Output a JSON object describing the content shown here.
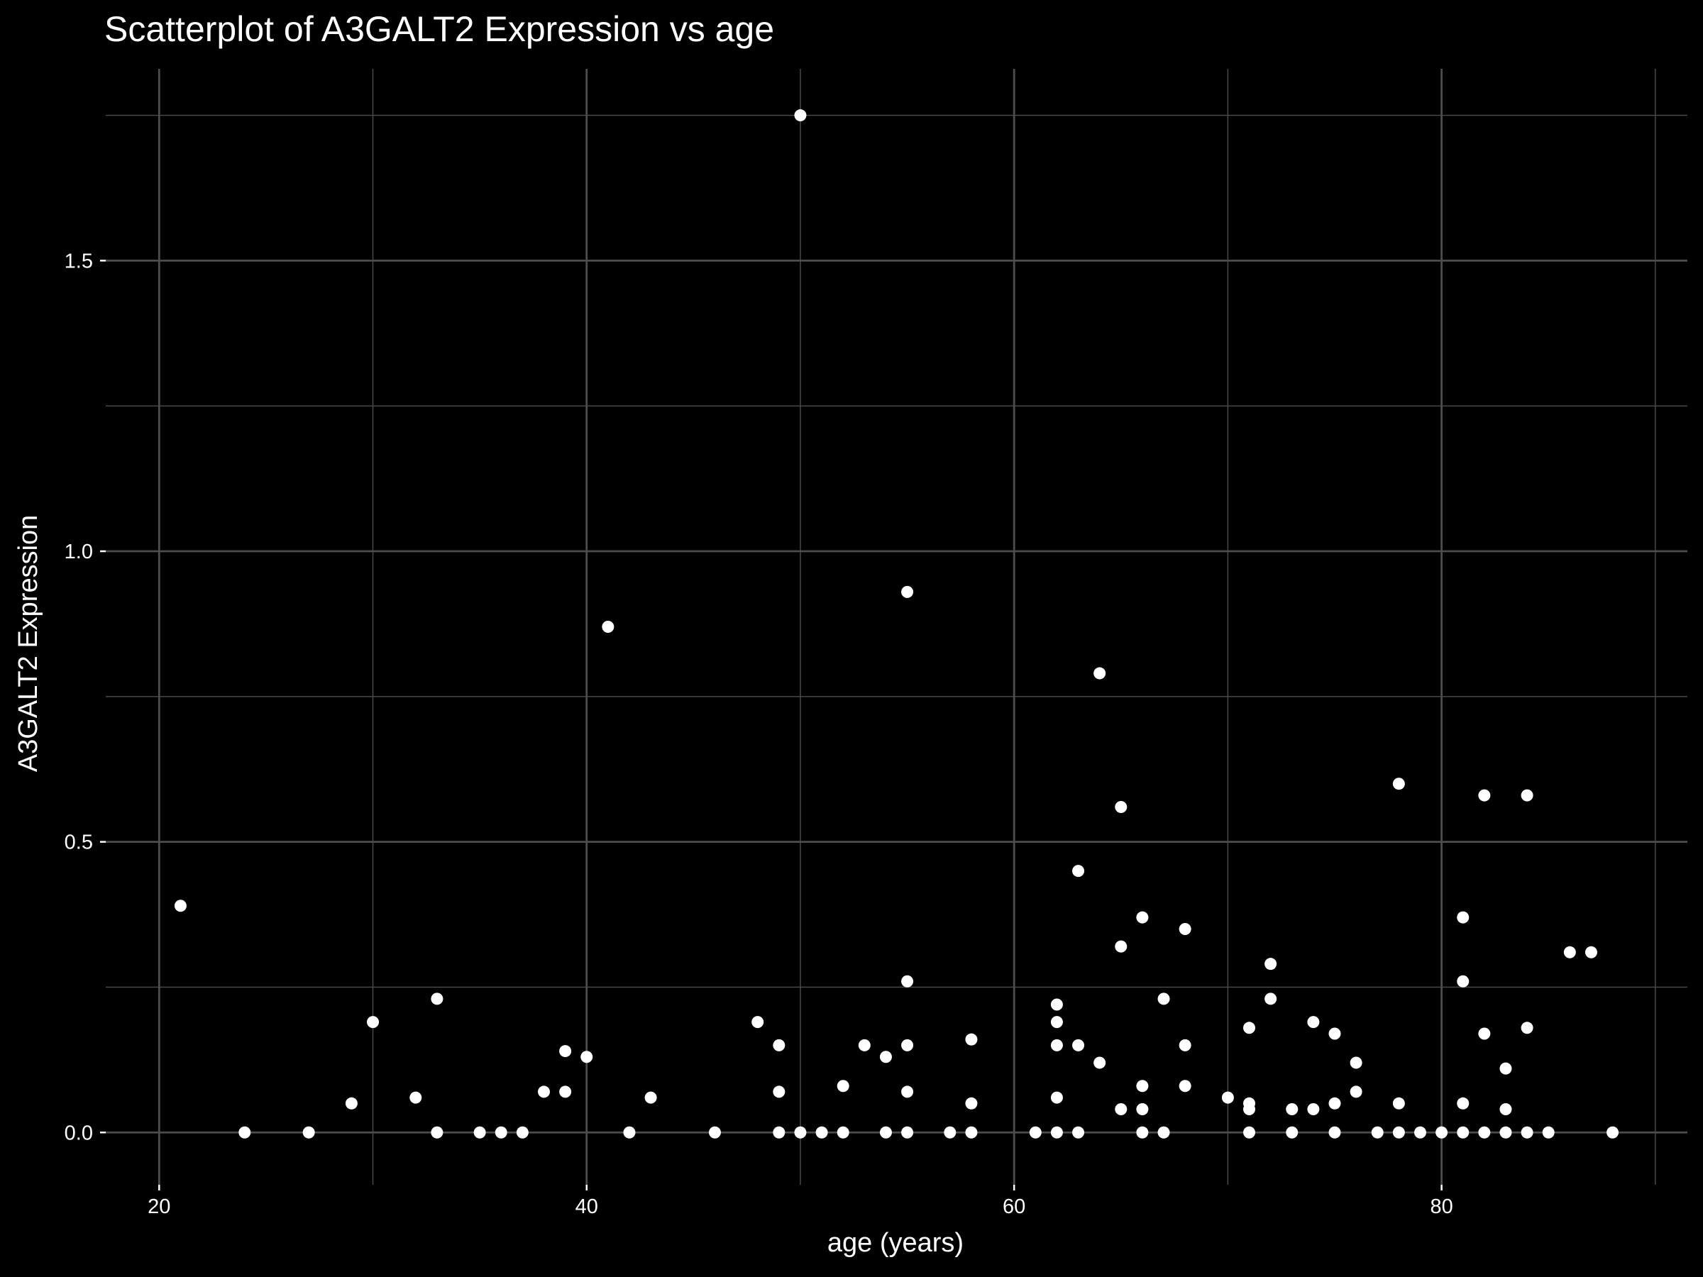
{
  "chart_data": {
    "type": "scatter",
    "title": "Scatterplot of A3GALT2 Expression vs age",
    "xlabel": "age (years)",
    "ylabel": "A3GALT2 Expression",
    "xlim": [
      17.5,
      91.5
    ],
    "ylim": [
      -0.09,
      1.83
    ],
    "x_ticks": [
      20,
      40,
      60,
      80
    ],
    "y_ticks": [
      0.0,
      0.5,
      1.0,
      1.5
    ],
    "x_tick_labels": [
      "20",
      "40",
      "60",
      "80"
    ],
    "y_tick_labels": [
      "0.0",
      "0.5",
      "1.0",
      "1.5"
    ],
    "grid": true,
    "legend": "none",
    "colors": {
      "background": "#000000",
      "points": "#ffffff",
      "grid": "#4d4d4d",
      "text": "#ffffff"
    },
    "points": [
      {
        "x": 21,
        "y": 0.39
      },
      {
        "x": 24,
        "y": 0.0
      },
      {
        "x": 27,
        "y": 0.0
      },
      {
        "x": 29,
        "y": 0.05
      },
      {
        "x": 30,
        "y": 0.19
      },
      {
        "x": 32,
        "y": 0.06
      },
      {
        "x": 33,
        "y": 0.23
      },
      {
        "x": 33,
        "y": 0.0
      },
      {
        "x": 35,
        "y": 0.0
      },
      {
        "x": 36,
        "y": 0.0
      },
      {
        "x": 37,
        "y": 0.0
      },
      {
        "x": 38,
        "y": 0.07
      },
      {
        "x": 39,
        "y": 0.14
      },
      {
        "x": 39,
        "y": 0.07
      },
      {
        "x": 40,
        "y": 0.13
      },
      {
        "x": 41,
        "y": 0.87
      },
      {
        "x": 42,
        "y": 0.0
      },
      {
        "x": 43,
        "y": 0.06
      },
      {
        "x": 46,
        "y": 0.0
      },
      {
        "x": 48,
        "y": 0.19
      },
      {
        "x": 49,
        "y": 0.15
      },
      {
        "x": 49,
        "y": 0.07
      },
      {
        "x": 49,
        "y": 0.0
      },
      {
        "x": 50,
        "y": 1.75
      },
      {
        "x": 50,
        "y": 0.0
      },
      {
        "x": 51,
        "y": 0.0
      },
      {
        "x": 52,
        "y": 0.08
      },
      {
        "x": 52,
        "y": 0.0
      },
      {
        "x": 53,
        "y": 0.15
      },
      {
        "x": 54,
        "y": 0.13
      },
      {
        "x": 54,
        "y": 0.0
      },
      {
        "x": 55,
        "y": 0.93
      },
      {
        "x": 55,
        "y": 0.26
      },
      {
        "x": 55,
        "y": 0.15
      },
      {
        "x": 55,
        "y": 0.07
      },
      {
        "x": 55,
        "y": 0.0
      },
      {
        "x": 57,
        "y": 0.0
      },
      {
        "x": 58,
        "y": 0.16
      },
      {
        "x": 58,
        "y": 0.05
      },
      {
        "x": 58,
        "y": 0.0
      },
      {
        "x": 61,
        "y": 0.0
      },
      {
        "x": 62,
        "y": 0.22
      },
      {
        "x": 62,
        "y": 0.19
      },
      {
        "x": 62,
        "y": 0.15
      },
      {
        "x": 62,
        "y": 0.06
      },
      {
        "x": 62,
        "y": 0.0
      },
      {
        "x": 63,
        "y": 0.45
      },
      {
        "x": 63,
        "y": 0.15
      },
      {
        "x": 63,
        "y": 0.0
      },
      {
        "x": 64,
        "y": 0.79
      },
      {
        "x": 64,
        "y": 0.12
      },
      {
        "x": 65,
        "y": 0.56
      },
      {
        "x": 65,
        "y": 0.32
      },
      {
        "x": 65,
        "y": 0.04
      },
      {
        "x": 66,
        "y": 0.37
      },
      {
        "x": 66,
        "y": 0.08
      },
      {
        "x": 66,
        "y": 0.04
      },
      {
        "x": 66,
        "y": 0.0
      },
      {
        "x": 67,
        "y": 0.23
      },
      {
        "x": 67,
        "y": 0.0
      },
      {
        "x": 68,
        "y": 0.35
      },
      {
        "x": 68,
        "y": 0.15
      },
      {
        "x": 68,
        "y": 0.08
      },
      {
        "x": 70,
        "y": 0.06
      },
      {
        "x": 71,
        "y": 0.18
      },
      {
        "x": 71,
        "y": 0.05
      },
      {
        "x": 71,
        "y": 0.04
      },
      {
        "x": 71,
        "y": 0.0
      },
      {
        "x": 72,
        "y": 0.29
      },
      {
        "x": 72,
        "y": 0.23
      },
      {
        "x": 73,
        "y": 0.04
      },
      {
        "x": 73,
        "y": 0.0
      },
      {
        "x": 74,
        "y": 0.19
      },
      {
        "x": 74,
        "y": 0.04
      },
      {
        "x": 75,
        "y": 0.17
      },
      {
        "x": 75,
        "y": 0.05
      },
      {
        "x": 75,
        "y": 0.0
      },
      {
        "x": 76,
        "y": 0.12
      },
      {
        "x": 76,
        "y": 0.07
      },
      {
        "x": 77,
        "y": 0.0
      },
      {
        "x": 78,
        "y": 0.6
      },
      {
        "x": 78,
        "y": 0.05
      },
      {
        "x": 78,
        "y": 0.0
      },
      {
        "x": 79,
        "y": 0.0
      },
      {
        "x": 80,
        "y": 0.0
      },
      {
        "x": 81,
        "y": 0.37
      },
      {
        "x": 81,
        "y": 0.26
      },
      {
        "x": 81,
        "y": 0.05
      },
      {
        "x": 81,
        "y": 0.0
      },
      {
        "x": 82,
        "y": 0.58
      },
      {
        "x": 82,
        "y": 0.17
      },
      {
        "x": 82,
        "y": 0.0
      },
      {
        "x": 83,
        "y": 0.11
      },
      {
        "x": 83,
        "y": 0.04
      },
      {
        "x": 83,
        "y": 0.0
      },
      {
        "x": 84,
        "y": 0.58
      },
      {
        "x": 84,
        "y": 0.18
      },
      {
        "x": 84,
        "y": 0.0
      },
      {
        "x": 85,
        "y": 0.0
      },
      {
        "x": 86,
        "y": 0.31
      },
      {
        "x": 87,
        "y": 0.31
      },
      {
        "x": 88,
        "y": 0.0
      }
    ]
  }
}
